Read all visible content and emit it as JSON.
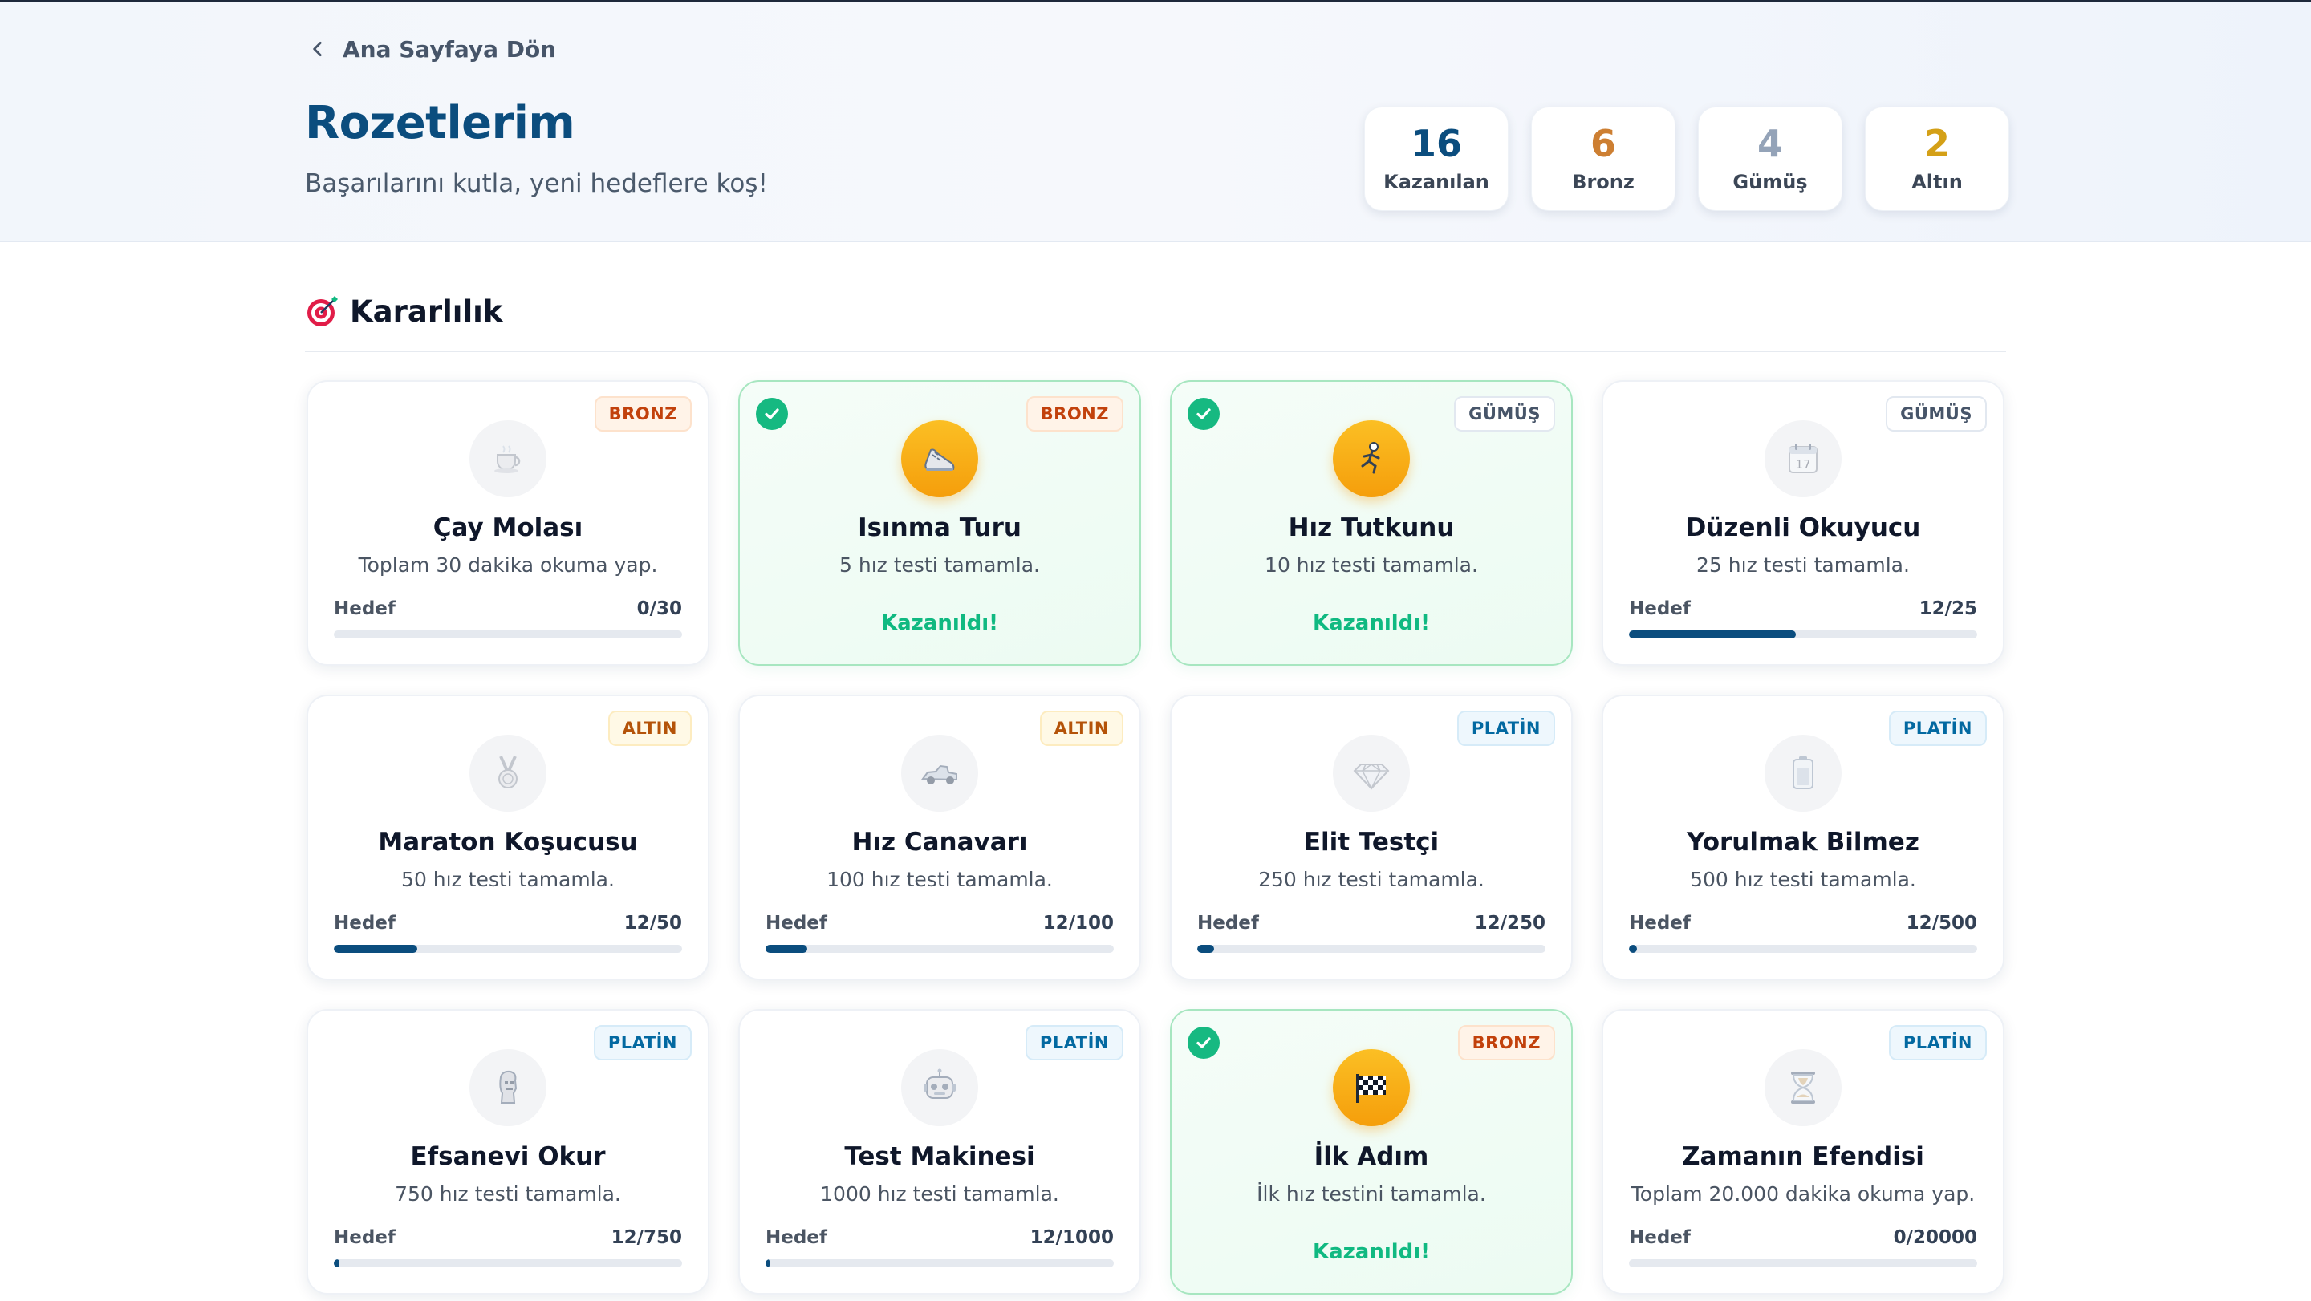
{
  "header": {
    "back_label": "Ana Sayfaya Dön",
    "title": "Rozetlerim",
    "subtitle": "Başarılarını kutla, yeni hedeflere koş!",
    "stats": [
      {
        "value": "16",
        "label": "Kazanılan",
        "color": "#0b4d7e"
      },
      {
        "value": "6",
        "label": "Bronz",
        "color": "#cd7f32"
      },
      {
        "value": "4",
        "label": "Gümüş",
        "color": "#94a3b8"
      },
      {
        "value": "2",
        "label": "Altın",
        "color": "#d4a017"
      }
    ]
  },
  "section": {
    "title": "Kararlılık",
    "icon": "target-icon"
  },
  "tiers": {
    "BRONZ": {
      "bg": "#fff3e8",
      "fg": "#c2410c",
      "border": "#fde2cc"
    },
    "GÜMÜŞ": {
      "bg": "#ffffff",
      "fg": "#475569",
      "border": "#e2e8f0"
    },
    "ALTIN": {
      "bg": "#fff9e6",
      "fg": "#b45309",
      "border": "#fdecc0"
    },
    "PLATİN": {
      "bg": "#eef7fd",
      "fg": "#0369a1",
      "border": "#d6ebf8"
    }
  },
  "progress_label": "Hedef",
  "earned_text": "Kazanıldı!",
  "badges": [
    {
      "name": "Çay Molası",
      "desc": "Toplam 30 dakika okuma yap.",
      "tier": "BRONZ",
      "earned": false,
      "icon": "tea-cup-icon",
      "progress": "0/30",
      "fraction": 0
    },
    {
      "name": "Isınma Turu",
      "desc": "5 hız testi tamamla.",
      "tier": "BRONZ",
      "earned": true,
      "icon": "running-shoe-icon"
    },
    {
      "name": "Hız Tutkunu",
      "desc": "10 hız testi tamamla.",
      "tier": "GÜMÜŞ",
      "earned": true,
      "icon": "runner-icon"
    },
    {
      "name": "Düzenli Okuyucu",
      "desc": "25 hız testi tamamla.",
      "tier": "GÜMÜŞ",
      "earned": false,
      "icon": "calendar-icon",
      "calendar_day": "17",
      "progress": "12/25",
      "fraction": 0.48
    },
    {
      "name": "Maraton Koşucusu",
      "desc": "50 hız testi tamamla.",
      "tier": "ALTIN",
      "earned": false,
      "icon": "medal-icon",
      "progress": "12/50",
      "fraction": 0.24
    },
    {
      "name": "Hız Canavarı",
      "desc": "100 hız testi tamamla.",
      "tier": "ALTIN",
      "earned": false,
      "icon": "race-car-icon",
      "progress": "12/100",
      "fraction": 0.12
    },
    {
      "name": "Elit Testçi",
      "desc": "250 hız testi tamamla.",
      "tier": "PLATİN",
      "earned": false,
      "icon": "diamond-icon",
      "progress": "12/250",
      "fraction": 0.048
    },
    {
      "name": "Yorulmak Bilmez",
      "desc": "500 hız testi tamamla.",
      "tier": "PLATİN",
      "earned": false,
      "icon": "battery-icon",
      "progress": "12/500",
      "fraction": 0.024
    },
    {
      "name": "Efsanevi Okur",
      "desc": "750 hız testi tamamla.",
      "tier": "PLATİN",
      "earned": false,
      "icon": "statue-icon",
      "progress": "12/750",
      "fraction": 0.016
    },
    {
      "name": "Test Makinesi",
      "desc": "1000 hız testi tamamla.",
      "tier": "PLATİN",
      "earned": false,
      "icon": "robot-icon",
      "progress": "12/1000",
      "fraction": 0.012
    },
    {
      "name": "İlk Adım",
      "desc": "İlk hız testini tamamla.",
      "tier": "BRONZ",
      "earned": true,
      "icon": "checkered-flag-icon"
    },
    {
      "name": "Zamanın Efendisi",
      "desc": "Toplam 20.000 dakika okuma yap.",
      "tier": "PLATİN",
      "earned": false,
      "icon": "hourglass-icon",
      "progress": "0/20000",
      "fraction": 0
    }
  ]
}
